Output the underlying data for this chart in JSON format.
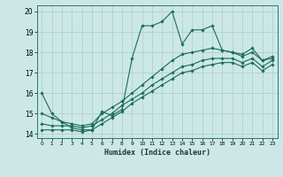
{
  "xlabel": "Humidex (Indice chaleur)",
  "xlim": [
    -0.5,
    23.5
  ],
  "ylim": [
    13.8,
    20.3
  ],
  "yticks": [
    14,
    15,
    16,
    17,
    18,
    19,
    20
  ],
  "xticks": [
    0,
    1,
    2,
    3,
    4,
    5,
    6,
    7,
    8,
    9,
    10,
    11,
    12,
    13,
    14,
    15,
    16,
    17,
    18,
    19,
    20,
    21,
    22,
    23
  ],
  "bg_color": "#cce8e6",
  "grid_color": "#aaccca",
  "line_color": "#1a6b5a",
  "line1_x": [
    0,
    1,
    2,
    3,
    4,
    5,
    6,
    7,
    8,
    9,
    10,
    11,
    12,
    13,
    14,
    15,
    16,
    17,
    18,
    19,
    20,
    21,
    22,
    23
  ],
  "line1_y": [
    16.0,
    15.0,
    14.6,
    14.3,
    14.2,
    14.2,
    15.1,
    14.9,
    15.2,
    17.7,
    19.3,
    19.3,
    19.5,
    20.0,
    18.4,
    19.1,
    19.1,
    19.3,
    18.1,
    18.0,
    17.9,
    18.2,
    17.6,
    17.7
  ],
  "line2_x": [
    0,
    1,
    2,
    3,
    4,
    5,
    6,
    7,
    8,
    9,
    10,
    11,
    12,
    13,
    14,
    15,
    16,
    17,
    18,
    19,
    20,
    21,
    22,
    23
  ],
  "line2_y": [
    15.0,
    14.8,
    14.6,
    14.5,
    14.4,
    14.5,
    15.0,
    15.3,
    15.6,
    16.0,
    16.4,
    16.8,
    17.2,
    17.6,
    17.9,
    18.0,
    18.1,
    18.2,
    18.1,
    18.0,
    17.8,
    18.0,
    17.6,
    17.8
  ],
  "line3_x": [
    0,
    1,
    2,
    3,
    4,
    5,
    6,
    7,
    8,
    9,
    10,
    11,
    12,
    13,
    14,
    15,
    16,
    17,
    18,
    19,
    20,
    21,
    22,
    23
  ],
  "line3_y": [
    14.5,
    14.4,
    14.4,
    14.4,
    14.3,
    14.4,
    14.7,
    15.0,
    15.4,
    15.7,
    16.0,
    16.4,
    16.7,
    17.0,
    17.3,
    17.4,
    17.6,
    17.7,
    17.7,
    17.7,
    17.5,
    17.7,
    17.3,
    17.6
  ],
  "line4_x": [
    0,
    1,
    2,
    3,
    4,
    5,
    6,
    7,
    8,
    9,
    10,
    11,
    12,
    13,
    14,
    15,
    16,
    17,
    18,
    19,
    20,
    21,
    22,
    23
  ],
  "line4_y": [
    14.2,
    14.2,
    14.2,
    14.2,
    14.1,
    14.2,
    14.5,
    14.8,
    15.1,
    15.5,
    15.8,
    16.1,
    16.4,
    16.7,
    17.0,
    17.1,
    17.3,
    17.4,
    17.5,
    17.5,
    17.3,
    17.5,
    17.1,
    17.4
  ]
}
